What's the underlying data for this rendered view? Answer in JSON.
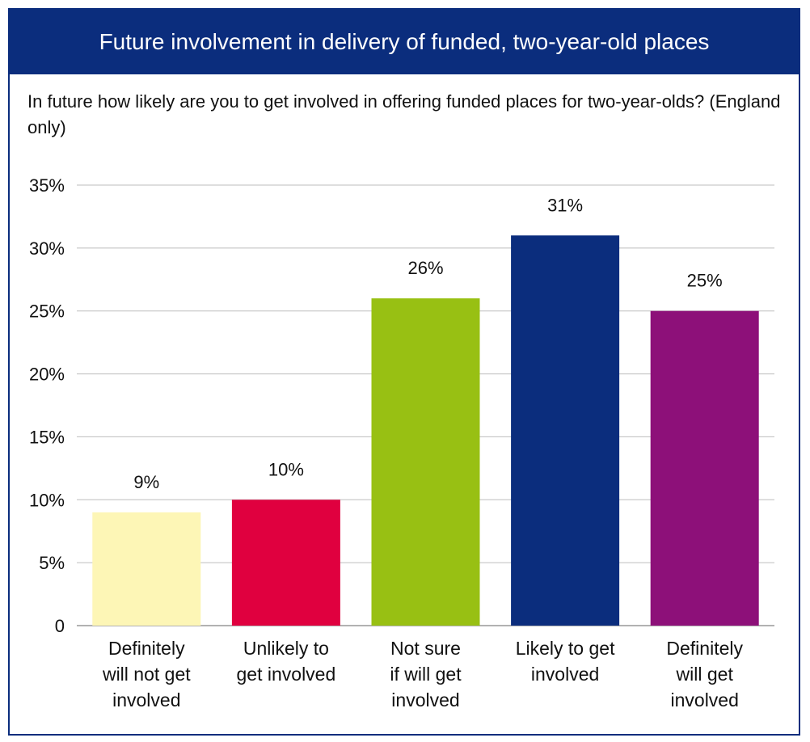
{
  "title": "Future involvement in delivery of funded, two-year-old places",
  "question": "In future how likely are you to get involved in offering funded places for two-year-olds? (England only)",
  "chart_data": {
    "type": "bar",
    "categories": [
      [
        "Definitely",
        "will not get",
        "involved"
      ],
      [
        "Unlikely to",
        "get involved"
      ],
      [
        "Not sure",
        "if will get",
        "involved"
      ],
      [
        "Likely to get",
        "involved"
      ],
      [
        "Definitely",
        "will get",
        "involved"
      ]
    ],
    "values": [
      9,
      10,
      26,
      31,
      25
    ],
    "value_labels": [
      "9%",
      "10%",
      "26%",
      "31%",
      "25%"
    ],
    "colors": [
      "#fdf6b6",
      "#e0003f",
      "#98c013",
      "#0b2d7d",
      "#8d1079"
    ],
    "ylim": [
      0,
      35
    ],
    "yticks": [
      0,
      5,
      10,
      15,
      20,
      25,
      30,
      35
    ],
    "ytick_labels": [
      "0",
      "5%",
      "10%",
      "15%",
      "20%",
      "25%",
      "30%",
      "35%"
    ],
    "grid": true
  }
}
